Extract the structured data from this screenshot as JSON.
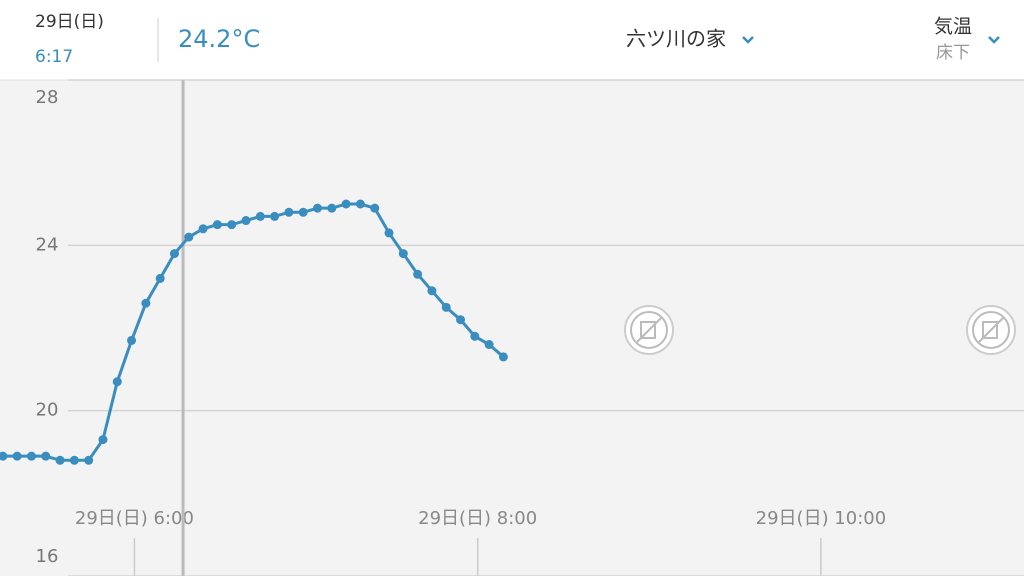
{
  "header": {
    "date": "29日(日)",
    "time": "6:17",
    "temperature": "24.2°C",
    "location": "六ツ川の家",
    "metric": "気温",
    "sensor": "床下"
  },
  "chart_data": {
    "type": "line",
    "color": "#3a8dbf",
    "grid": true,
    "x": [
      "5:14",
      "5:19",
      "5:24",
      "5:29",
      "5:34",
      "5:39",
      "5:44",
      "5:49",
      "5:54",
      "5:59",
      "6:04",
      "6:09",
      "6:14",
      "6:19",
      "6:24",
      "6:29",
      "6:34",
      "6:39",
      "6:44",
      "6:49",
      "6:54",
      "6:59",
      "7:04",
      "7:09",
      "7:14",
      "7:19",
      "7:24",
      "7:29",
      "7:34",
      "7:39",
      "7:44",
      "7:49",
      "7:54",
      "7:59",
      "8:04",
      "8:09"
    ],
    "values": [
      18.9,
      18.9,
      18.9,
      18.9,
      18.8,
      18.8,
      18.8,
      19.3,
      20.7,
      21.7,
      22.6,
      23.2,
      23.8,
      24.2,
      24.4,
      24.5,
      24.5,
      24.6,
      24.7,
      24.7,
      24.8,
      24.8,
      24.9,
      24.9,
      25.0,
      25.0,
      24.9,
      24.3,
      23.8,
      23.3,
      22.9,
      22.5,
      22.2,
      21.8,
      21.6,
      21.3
    ],
    "xlim": [
      "5:13",
      "11:11"
    ],
    "xticks": [
      {
        "value": "6:00",
        "label": "29日(日) 6:00"
      },
      {
        "value": "8:00",
        "label": "29日(日) 8:00"
      },
      {
        "value": "10:00",
        "label": "29日(日) 10:00"
      }
    ],
    "ylim": [
      16,
      28
    ],
    "yticks": [
      16,
      20,
      24,
      28
    ]
  }
}
